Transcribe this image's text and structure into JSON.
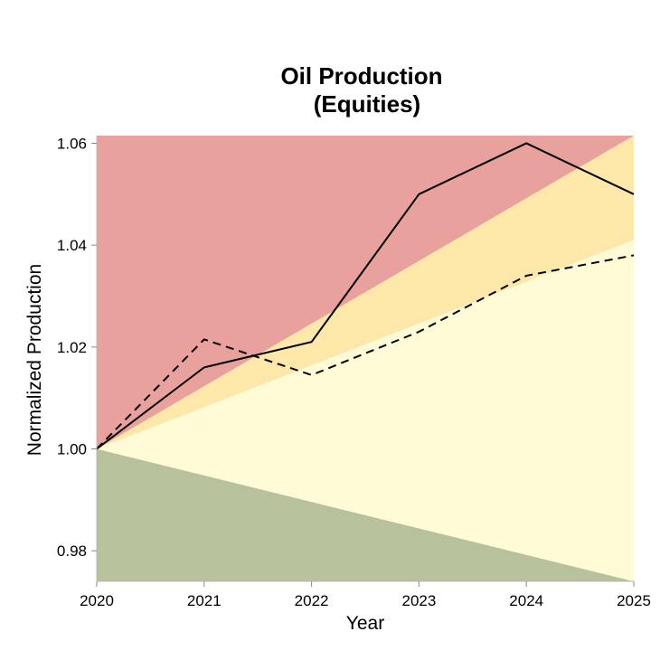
{
  "chart_data": {
    "type": "line",
    "title_lines": [
      "Oil Production",
      "(Equities)"
    ],
    "xlabel": "Year",
    "ylabel": "Normalized Production",
    "xlim": [
      2020,
      2025
    ],
    "ylim": [
      0.974,
      1.0615
    ],
    "x_ticks": [
      2020,
      2021,
      2022,
      2023,
      2024,
      2025
    ],
    "x_tick_labels": [
      "2020",
      "2021",
      "2022",
      "2023",
      "2024",
      "2025"
    ],
    "y_ticks": [
      0.98,
      1.0,
      1.02,
      1.04,
      1.06
    ],
    "y_tick_labels": [
      "0.98",
      "1.00",
      "1.02",
      "1.04",
      "1.06"
    ],
    "grid": false,
    "legend": "none",
    "bands": [
      {
        "color": "#b7c29d",
        "lower": [
          0.974,
          0.974
        ],
        "upper": [
          1.0,
          0.974
        ]
      },
      {
        "color": "#fffbd6",
        "lower": [
          1.0,
          0.974
        ],
        "upper": [
          1.0,
          1.041
        ]
      },
      {
        "color": "#fde7a9",
        "lower": [
          1.0,
          1.041
        ],
        "upper": [
          1.0,
          1.0615
        ]
      },
      {
        "color": "#e8a19c",
        "lower": [
          1.0,
          1.0615
        ],
        "upper": [
          1.0615,
          1.0615
        ]
      }
    ],
    "band_x": [
      2020,
      2025
    ],
    "series": [
      {
        "style": "solid",
        "color": "#000000",
        "x": [
          2020,
          2021,
          2022,
          2023,
          2024,
          2025
        ],
        "y": [
          1.0,
          1.016,
          1.021,
          1.05,
          1.06,
          1.05
        ]
      },
      {
        "style": "dashed",
        "color": "#000000",
        "x": [
          2020,
          2021,
          2022,
          2023,
          2024,
          2025
        ],
        "y": [
          1.0,
          1.0215,
          1.0145,
          1.023,
          1.034,
          1.038
        ]
      }
    ]
  }
}
